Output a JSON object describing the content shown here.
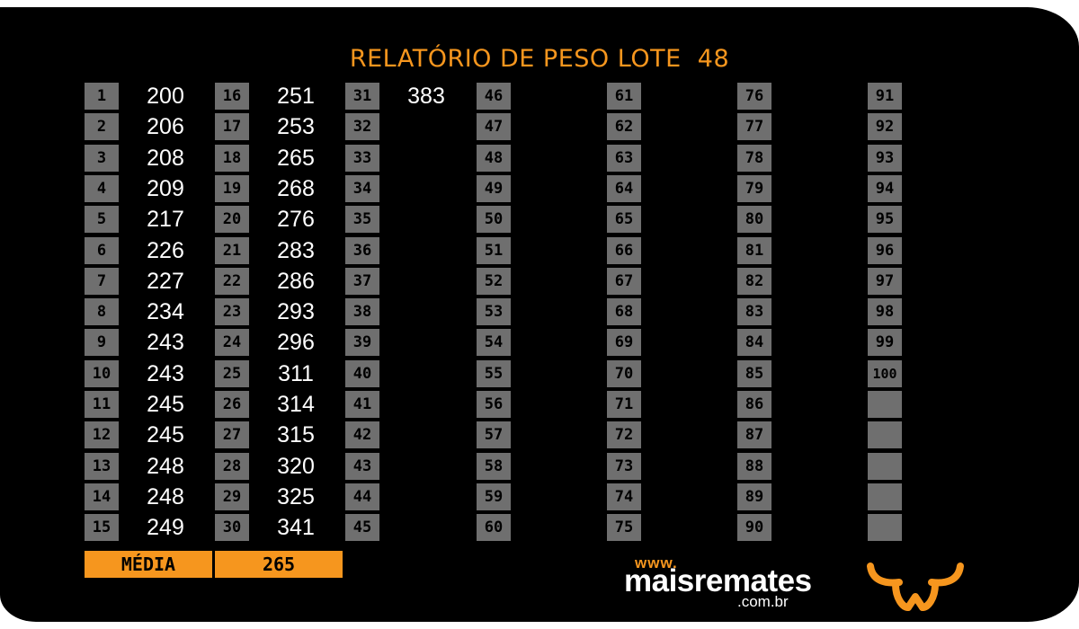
{
  "report": {
    "title": "RELATÓRIO DE PESO LOTE  48",
    "numbers": [
      "1",
      "2",
      "3",
      "4",
      "5",
      "6",
      "7",
      "8",
      "9",
      "10",
      "11",
      "12",
      "13",
      "14",
      "15",
      "16",
      "17",
      "18",
      "19",
      "20",
      "21",
      "22",
      "23",
      "24",
      "25",
      "26",
      "27",
      "28",
      "29",
      "30",
      "31",
      "32",
      "33",
      "34",
      "35",
      "36",
      "37",
      "38",
      "39",
      "40",
      "41",
      "42",
      "43",
      "44",
      "45",
      "46",
      "47",
      "48",
      "49",
      "50",
      "51",
      "52",
      "53",
      "54",
      "55",
      "56",
      "57",
      "58",
      "59",
      "60",
      "61",
      "62",
      "63",
      "64",
      "65",
      "66",
      "67",
      "68",
      "69",
      "70",
      "71",
      "72",
      "73",
      "74",
      "75",
      "76",
      "77",
      "78",
      "79",
      "80",
      "81",
      "82",
      "83",
      "84",
      "85",
      "86",
      "87",
      "88",
      "89",
      "90",
      "91",
      "92",
      "93",
      "94",
      "95",
      "96",
      "97",
      "98",
      "99",
      "100"
    ],
    "weights": [
      "200",
      "206",
      "208",
      "209",
      "217",
      "226",
      "227",
      "234",
      "243",
      "243",
      "245",
      "245",
      "248",
      "248",
      "249",
      "251",
      "253",
      "265",
      "268",
      "276",
      "283",
      "286",
      "293",
      "296",
      "311",
      "314",
      "315",
      "320",
      "325",
      "341",
      "383"
    ],
    "average_label": "MÉDIA",
    "average_value": "265"
  },
  "brand": {
    "www": "www.",
    "name": "maisremates",
    "domain": ".com.br",
    "icon": "bull-horns-icon",
    "accent_color": "#f6961e"
  }
}
